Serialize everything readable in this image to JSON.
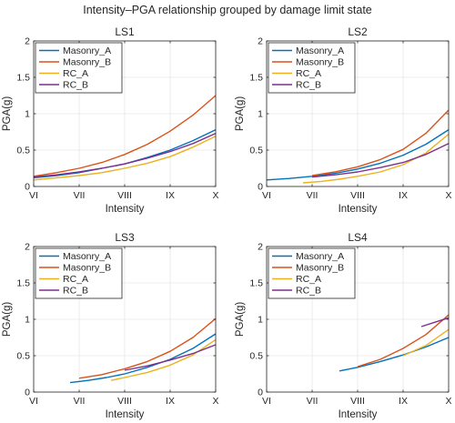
{
  "figure": {
    "title": "Intensity–PGA relationship grouped by damage limit state"
  },
  "chart_data": [
    {
      "type": "line",
      "title": "LS1",
      "xlabel": "Intensity",
      "ylabel": "PGA(g)",
      "xticks": [
        "VI",
        "VII",
        "VIII",
        "IX",
        "X"
      ],
      "xlim": [
        6,
        10
      ],
      "ylim": [
        0,
        2
      ],
      "yticks": [
        "0",
        "0.5",
        "1",
        "1.5",
        "2"
      ],
      "grid": true,
      "legend": "top-left",
      "series": [
        {
          "name": "Masonry_A",
          "color": "#0072BD",
          "x": [
            6,
            6.5,
            7,
            7.5,
            8,
            8.5,
            9,
            9.5,
            10
          ],
          "y": [
            0.12,
            0.15,
            0.19,
            0.25,
            0.31,
            0.4,
            0.5,
            0.63,
            0.78
          ]
        },
        {
          "name": "Masonry_B",
          "color": "#D95319",
          "x": [
            6,
            6.5,
            7,
            7.5,
            8,
            8.5,
            9,
            9.5,
            10
          ],
          "y": [
            0.14,
            0.19,
            0.25,
            0.33,
            0.44,
            0.58,
            0.76,
            0.98,
            1.25
          ]
        },
        {
          "name": "RC_A",
          "color": "#EDB120",
          "x": [
            6,
            6.5,
            7,
            7.5,
            8,
            8.5,
            9,
            9.5,
            10
          ],
          "y": [
            0.09,
            0.12,
            0.15,
            0.19,
            0.25,
            0.32,
            0.41,
            0.54,
            0.69
          ]
        },
        {
          "name": "RC_B",
          "color": "#7E2F8E",
          "x": [
            6,
            6.5,
            7,
            7.5,
            8,
            8.5,
            9,
            9.5,
            10
          ],
          "y": [
            0.13,
            0.16,
            0.2,
            0.25,
            0.31,
            0.39,
            0.48,
            0.59,
            0.73
          ]
        }
      ]
    },
    {
      "type": "line",
      "title": "LS2",
      "xlabel": "Intensity",
      "ylabel": "PGA(g)",
      "xticks": [
        "VI",
        "VII",
        "VIII",
        "IX",
        "X"
      ],
      "xlim": [
        6,
        10
      ],
      "ylim": [
        0,
        2
      ],
      "yticks": [
        "0",
        "0.5",
        "1",
        "1.5",
        "2"
      ],
      "grid": true,
      "legend": "top-left",
      "series": [
        {
          "name": "Masonry_A",
          "color": "#0072BD",
          "x": [
            6,
            6.5,
            7,
            7.5,
            8,
            8.5,
            9,
            9.5,
            10
          ],
          "y": [
            0.09,
            0.11,
            0.14,
            0.18,
            0.24,
            0.32,
            0.43,
            0.58,
            0.78
          ]
        },
        {
          "name": "Masonry_B",
          "color": "#D95319",
          "x": [
            7,
            7.5,
            8,
            8.5,
            9,
            9.5,
            10
          ],
          "y": [
            0.15,
            0.2,
            0.27,
            0.37,
            0.51,
            0.73,
            1.05
          ]
        },
        {
          "name": "RC_A",
          "color": "#EDB120",
          "x": [
            6.8,
            7.2,
            7.6,
            8,
            8.5,
            9,
            9.5,
            10
          ],
          "y": [
            0.05,
            0.07,
            0.1,
            0.14,
            0.2,
            0.3,
            0.46,
            0.72
          ]
        },
        {
          "name": "RC_B",
          "color": "#7E2F8E",
          "x": [
            7,
            7.5,
            8,
            8.5,
            9,
            9.5,
            10
          ],
          "y": [
            0.13,
            0.16,
            0.2,
            0.26,
            0.33,
            0.44,
            0.59
          ]
        }
      ]
    },
    {
      "type": "line",
      "title": "LS3",
      "xlabel": "Intensity",
      "ylabel": "PGA(g)",
      "xticks": [
        "VI",
        "VII",
        "VIII",
        "IX",
        "X"
      ],
      "xlim": [
        6,
        10
      ],
      "ylim": [
        0,
        2
      ],
      "yticks": [
        "0",
        "0.5",
        "1",
        "1.5",
        "2"
      ],
      "grid": true,
      "legend": "top-left",
      "series": [
        {
          "name": "Masonry_A",
          "color": "#0072BD",
          "x": [
            6.8,
            7.2,
            7.6,
            8,
            8.5,
            9,
            9.5,
            10
          ],
          "y": [
            0.13,
            0.16,
            0.2,
            0.25,
            0.34,
            0.45,
            0.6,
            0.8
          ]
        },
        {
          "name": "Masonry_B",
          "color": "#D95319",
          "x": [
            7,
            7.5,
            8,
            8.5,
            9,
            9.5,
            10
          ],
          "y": [
            0.19,
            0.24,
            0.32,
            0.42,
            0.56,
            0.75,
            1.01
          ]
        },
        {
          "name": "RC_A",
          "color": "#EDB120",
          "x": [
            7.7,
            8,
            8.5,
            9,
            9.5,
            10
          ],
          "y": [
            0.16,
            0.2,
            0.27,
            0.37,
            0.51,
            0.72
          ]
        },
        {
          "name": "RC_B",
          "color": "#7E2F8E",
          "x": [
            8,
            8.5,
            9,
            9.5,
            10
          ],
          "y": [
            0.3,
            0.36,
            0.44,
            0.53,
            0.65
          ]
        }
      ]
    },
    {
      "type": "line",
      "title": "LS4",
      "xlabel": "Intensity",
      "ylabel": "PGA(g)",
      "xticks": [
        "VI",
        "VII",
        "VIII",
        "IX",
        "X"
      ],
      "xlim": [
        6,
        10
      ],
      "ylim": [
        0,
        2
      ],
      "yticks": [
        "0",
        "0.5",
        "1",
        "1.5",
        "2"
      ],
      "grid": true,
      "legend": "top-left",
      "series": [
        {
          "name": "Masonry_A",
          "color": "#0072BD",
          "x": [
            7.6,
            8,
            8.5,
            9,
            9.5,
            10
          ],
          "y": [
            0.29,
            0.34,
            0.42,
            0.51,
            0.62,
            0.75
          ]
        },
        {
          "name": "Masonry_B",
          "color": "#D95319",
          "x": [
            8,
            8.5,
            9,
            9.5,
            10
          ],
          "y": [
            0.35,
            0.45,
            0.6,
            0.79,
            1.06
          ]
        },
        {
          "name": "RC_A",
          "color": "#EDB120",
          "x": [
            9,
            9.5,
            10
          ],
          "y": [
            0.5,
            0.64,
            0.86
          ]
        },
        {
          "name": "RC_B",
          "color": "#7E2F8E",
          "x": [
            9.4,
            9.7,
            10
          ],
          "y": [
            0.9,
            0.96,
            1.02
          ]
        }
      ]
    }
  ]
}
